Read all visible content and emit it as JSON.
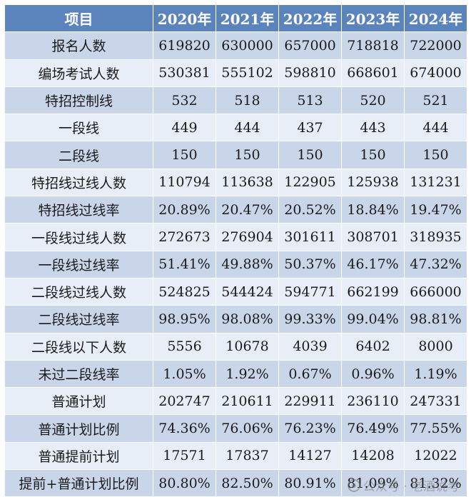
{
  "table": {
    "headers": [
      "项目",
      "2020年",
      "2021年",
      "2022年",
      "2023年",
      "2024年"
    ],
    "rows": [
      {
        "label": "报名人数",
        "values": [
          "619820",
          "630000",
          "657000",
          "718818",
          "722000"
        ]
      },
      {
        "label": "编场考试人数",
        "values": [
          "530381",
          "555102",
          "598810",
          "668601",
          "674000"
        ]
      },
      {
        "label": "特招控制线",
        "values": [
          "532",
          "518",
          "513",
          "520",
          "521"
        ]
      },
      {
        "label": "一段线",
        "values": [
          "449",
          "444",
          "437",
          "443",
          "444"
        ]
      },
      {
        "label": "二段线",
        "values": [
          "150",
          "150",
          "150",
          "150",
          "150"
        ]
      },
      {
        "label": "特招线过线人数",
        "values": [
          "110794",
          "113638",
          "122905",
          "125938",
          "131231"
        ]
      },
      {
        "label": "特招线过线率",
        "values": [
          "20.89%",
          "20.47%",
          "20.52%",
          "18.84%",
          "19.47%"
        ]
      },
      {
        "label": "一段线过线人数",
        "values": [
          "272673",
          "276904",
          "301611",
          "308701",
          "318935"
        ]
      },
      {
        "label": "一段线过线率",
        "values": [
          "51.41%",
          "49.88%",
          "50.37%",
          "46.17%",
          "47.32%"
        ]
      },
      {
        "label": "二段线过线人数",
        "values": [
          "524825",
          "544424",
          "594771",
          "662199",
          "666000"
        ]
      },
      {
        "label": "二段线过线率",
        "values": [
          "98.95%",
          "98.08%",
          "99.33%",
          "99.04%",
          "98.81%"
        ]
      },
      {
        "label": "二段线以下人数",
        "values": [
          "5556",
          "10678",
          "4039",
          "6402",
          "8000"
        ]
      },
      {
        "label": "未过二段线率",
        "values": [
          "1.05%",
          "1.92%",
          "0.67%",
          "0.96%",
          "1.19%"
        ]
      },
      {
        "label": "普通计划",
        "values": [
          "202747",
          "210611",
          "229911",
          "236110",
          "247331"
        ]
      },
      {
        "label": "普通计划比例",
        "values": [
          "74.36%",
          "76.06%",
          "76.23%",
          "76.49%",
          "77.55%"
        ]
      },
      {
        "label": "普通提前计划",
        "values": [
          "17571",
          "17837",
          "14127",
          "14208",
          "12022"
        ]
      },
      {
        "label": "提前+普通计划比例",
        "values": [
          "80.80%",
          "82.50%",
          "80.91%",
          "81.09%",
          "81.32%"
        ]
      }
    ]
  },
  "watermark": {
    "text": "公众号 · 老酒说考",
    "icon": "wechat-icon"
  },
  "colors": {
    "header_bg": "#5b84bd",
    "row_dark": "#c9d6ea",
    "row_light": "#e8eef7"
  }
}
